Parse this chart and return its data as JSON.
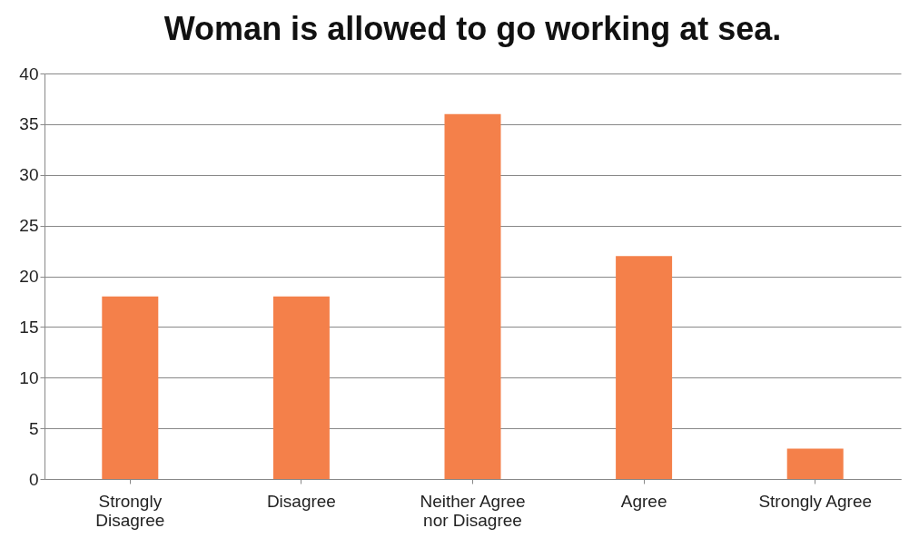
{
  "chart_data": {
    "type": "bar",
    "title": "Woman is allowed to go working at sea.",
    "categories": [
      "Strongly Disagree",
      "Disagree",
      "Neither Agree nor Disagree",
      "Agree",
      "Strongly Agree"
    ],
    "values": [
      18,
      18,
      36,
      22,
      3
    ],
    "color": "#f4804a",
    "ylim": [
      0,
      40
    ],
    "yticks": [
      0,
      5,
      10,
      15,
      20,
      25,
      30,
      35,
      40
    ],
    "grid": "y"
  }
}
